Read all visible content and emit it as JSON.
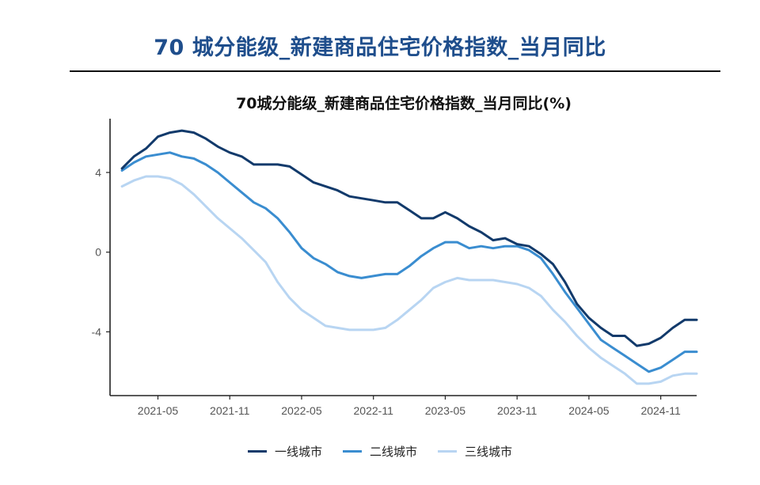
{
  "page_title": "70 城分能级_新建商品住宅价格指数_当月同比",
  "chart_data": {
    "type": "line",
    "title": "70城分能级_新建商品住宅价格指数_当月同比(%)",
    "xlabel": "",
    "ylabel": "",
    "x_start": "2021-01",
    "x_end": "2025-02",
    "x_ticks": [
      "2021-05",
      "2021-11",
      "2022-05",
      "2022-11",
      "2023-05",
      "2023-11",
      "2024-05",
      "2024-11"
    ],
    "y_ticks": [
      -4,
      0,
      4
    ],
    "ylim": [
      -7.2,
      6.7
    ],
    "grid": false,
    "legend_position": "bottom",
    "x": [
      "2021-02",
      "2021-03",
      "2021-04",
      "2021-05",
      "2021-06",
      "2021-07",
      "2021-08",
      "2021-09",
      "2021-10",
      "2021-11",
      "2021-12",
      "2022-01",
      "2022-02",
      "2022-03",
      "2022-04",
      "2022-05",
      "2022-06",
      "2022-07",
      "2022-08",
      "2022-09",
      "2022-10",
      "2022-11",
      "2022-12",
      "2023-01",
      "2023-02",
      "2023-03",
      "2023-04",
      "2023-05",
      "2023-06",
      "2023-07",
      "2023-08",
      "2023-09",
      "2023-10",
      "2023-11",
      "2023-12",
      "2024-01",
      "2024-02",
      "2024-03",
      "2024-04",
      "2024-05",
      "2024-06",
      "2024-07",
      "2024-08",
      "2024-09",
      "2024-10",
      "2024-11",
      "2024-12",
      "2025-01",
      "2025-02"
    ],
    "series": [
      {
        "name": "一线城市",
        "color": "#123a6b",
        "values": [
          4.2,
          4.8,
          5.2,
          5.8,
          6.0,
          6.1,
          6.0,
          5.7,
          5.3,
          5.0,
          4.8,
          4.4,
          4.4,
          4.4,
          4.3,
          3.9,
          3.5,
          3.3,
          3.1,
          2.8,
          2.7,
          2.6,
          2.5,
          2.5,
          2.1,
          1.7,
          1.7,
          2.0,
          1.7,
          1.3,
          1.0,
          0.6,
          0.7,
          0.4,
          0.3,
          -0.1,
          -0.6,
          -1.5,
          -2.6,
          -3.3,
          -3.8,
          -4.2,
          -4.2,
          -4.7,
          -4.6,
          -4.3,
          -3.8,
          -3.4,
          -3.4
        ]
      },
      {
        "name": "二线城市",
        "color": "#3a8dd0",
        "values": [
          4.1,
          4.5,
          4.8,
          4.9,
          5.0,
          4.8,
          4.7,
          4.4,
          4.0,
          3.5,
          3.0,
          2.5,
          2.2,
          1.7,
          1.0,
          0.2,
          -0.3,
          -0.6,
          -1.0,
          -1.2,
          -1.3,
          -1.2,
          -1.1,
          -1.1,
          -0.7,
          -0.2,
          0.2,
          0.5,
          0.5,
          0.2,
          0.3,
          0.2,
          0.3,
          0.3,
          0.1,
          -0.3,
          -1.1,
          -2.0,
          -2.8,
          -3.6,
          -4.4,
          -4.8,
          -5.2,
          -5.6,
          -6.0,
          -5.8,
          -5.4,
          -5.0,
          -5.0
        ]
      },
      {
        "name": "三线城市",
        "color": "#b8d5f2",
        "values": [
          3.3,
          3.6,
          3.8,
          3.8,
          3.7,
          3.4,
          2.9,
          2.3,
          1.7,
          1.2,
          0.7,
          0.1,
          -0.5,
          -1.5,
          -2.3,
          -2.9,
          -3.3,
          -3.7,
          -3.8,
          -3.9,
          -3.9,
          -3.9,
          -3.8,
          -3.4,
          -2.9,
          -2.4,
          -1.8,
          -1.5,
          -1.3,
          -1.4,
          -1.4,
          -1.4,
          -1.5,
          -1.6,
          -1.8,
          -2.2,
          -2.9,
          -3.5,
          -4.2,
          -4.8,
          -5.3,
          -5.7,
          -6.1,
          -6.6,
          -6.6,
          -6.5,
          -6.2,
          -6.1,
          -6.1
        ]
      }
    ]
  }
}
